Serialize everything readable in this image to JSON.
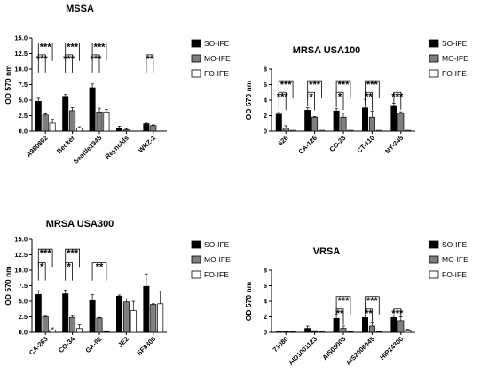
{
  "colors": {
    "SO-IFE": "#000000",
    "MO-IFE": "#7f7f7f",
    "FO-IFE": "#ffffff"
  },
  "chart_data": [
    {
      "type": "bar",
      "title": "MSSA",
      "ylabel": "OD 570 nm",
      "ylim": [
        0,
        15
      ],
      "yticks": [
        "0.0",
        "2.5",
        "5.0",
        "7.5",
        "10.0",
        "12.5",
        "15.0"
      ],
      "categories": [
        "A980892",
        "Becker",
        "Seattle1945",
        "Reynolds",
        "WKZ-1"
      ],
      "legend": [
        "SO-IFE",
        "MO-IFE",
        "FO-IFE"
      ],
      "series": [
        {
          "name": "SO-IFE",
          "values": [
            4.8,
            5.6,
            7.0,
            0.5,
            1.2
          ],
          "errors": [
            0.5,
            0.3,
            0.6,
            0.3,
            0.1
          ]
        },
        {
          "name": "MO-IFE",
          "values": [
            2.6,
            3.3,
            3.1,
            0.2,
            0.9
          ],
          "errors": [
            0.2,
            0.5,
            0.6,
            0.2,
            0.1
          ]
        },
        {
          "name": "FO-IFE",
          "values": [
            1.3,
            0.5,
            3.1,
            null,
            null
          ],
          "errors": [
            0.6,
            0.2,
            0.4,
            null,
            null
          ]
        }
      ],
      "significance": [
        {
          "cat": 0,
          "pair": [
            0,
            1
          ],
          "label": "***",
          "y": 12.3
        },
        {
          "cat": 0,
          "pair": [
            0,
            2
          ],
          "label": "***",
          "y": 14.2
        },
        {
          "cat": 1,
          "pair": [
            0,
            1
          ],
          "label": "***",
          "y": 12.3
        },
        {
          "cat": 1,
          "pair": [
            0,
            2
          ],
          "label": "***",
          "y": 14.2
        },
        {
          "cat": 2,
          "pair": [
            0,
            1
          ],
          "label": "***",
          "y": 12.3
        },
        {
          "cat": 2,
          "pair": [
            0,
            2
          ],
          "label": "***",
          "y": 14.2
        },
        {
          "cat": 4,
          "pair": [
            0,
            1
          ],
          "label": "**",
          "y": 12.3
        }
      ]
    },
    {
      "type": "bar",
      "title": "MRSA USA100",
      "ylabel": "OD 570 nm",
      "ylim": [
        0,
        8
      ],
      "yticks": [
        "0",
        "2",
        "4",
        "6",
        "8"
      ],
      "categories": [
        "626",
        "CA-126",
        "CO-23",
        "CT-110",
        "NY-245"
      ],
      "legend": [
        "SO-IFE",
        "MO-IFE",
        "FO-IFE"
      ],
      "series": [
        {
          "name": "SO-IFE",
          "values": [
            2.2,
            2.7,
            2.6,
            3.0,
            3.2
          ],
          "errors": [
            0.2,
            0.3,
            0.3,
            1.1,
            0.4
          ]
        },
        {
          "name": "MO-IFE",
          "values": [
            0.4,
            1.8,
            1.8,
            1.8,
            2.3
          ],
          "errors": [
            0.3,
            0.1,
            0.5,
            0.8,
            0.2
          ]
        },
        {
          "name": "FO-IFE",
          "values": [
            0.1,
            0.1,
            0.1,
            0.1,
            0.1
          ],
          "errors": [
            null,
            null,
            null,
            null,
            null
          ]
        }
      ],
      "significance": [
        {
          "cat": 0,
          "pair": [
            0,
            1
          ],
          "label": "***",
          "y": 5.0
        },
        {
          "cat": 0,
          "pair": [
            0,
            2
          ],
          "label": "***",
          "y": 6.5
        },
        {
          "cat": 1,
          "pair": [
            0,
            1
          ],
          "label": "*",
          "y": 5.0
        },
        {
          "cat": 1,
          "pair": [
            0,
            2
          ],
          "label": "***",
          "y": 6.5
        },
        {
          "cat": 2,
          "pair": [
            0,
            1
          ],
          "label": "*",
          "y": 5.0
        },
        {
          "cat": 2,
          "pair": [
            0,
            2
          ],
          "label": "***",
          "y": 6.5
        },
        {
          "cat": 3,
          "pair": [
            0,
            1
          ],
          "label": "**",
          "y": 5.0
        },
        {
          "cat": 3,
          "pair": [
            0,
            2
          ],
          "label": "***",
          "y": 6.5
        },
        {
          "cat": 4,
          "pair": [
            0,
            1
          ],
          "label": "***",
          "y": 5.0
        }
      ]
    },
    {
      "type": "bar",
      "title": "MRSA USA300",
      "ylabel": "OD 570 nm",
      "ylim": [
        0,
        15
      ],
      "yticks": [
        "0.0",
        "2.5",
        "5.0",
        "7.5",
        "10.0",
        "12.5",
        "15.0"
      ],
      "categories": [
        "CA-263",
        "CO-34",
        "GA-92",
        "JE2",
        "SF8300"
      ],
      "legend": [
        "SO-IFE",
        "MO-IFE",
        "FO-IFE"
      ],
      "series": [
        {
          "name": "SO-IFE",
          "values": [
            6.1,
            6.2,
            5.1,
            5.8,
            7.4
          ],
          "errors": [
            0.6,
            0.6,
            1.0,
            0.2,
            2.0
          ]
        },
        {
          "name": "MO-IFE",
          "values": [
            2.5,
            2.4,
            2.3,
            4.9,
            4.5
          ],
          "errors": [
            0.1,
            0.3,
            0.1,
            0.5,
            0.1
          ]
        },
        {
          "name": "FO-IFE",
          "values": [
            0.4,
            0.6,
            0.1,
            3.5,
            4.6
          ],
          "errors": [
            0.3,
            0.6,
            null,
            1.5,
            2.0
          ]
        }
      ],
      "significance": [
        {
          "cat": 0,
          "pair": [
            0,
            1
          ],
          "label": "*",
          "y": 11.2
        },
        {
          "cat": 0,
          "pair": [
            0,
            2
          ],
          "label": "***",
          "y": 13.4
        },
        {
          "cat": 1,
          "pair": [
            0,
            1
          ],
          "label": "*",
          "y": 11.2
        },
        {
          "cat": 1,
          "pair": [
            0,
            2
          ],
          "label": "***",
          "y": 13.4
        },
        {
          "cat": 2,
          "pair": [
            0,
            2
          ],
          "label": "**",
          "y": 11.2
        }
      ]
    },
    {
      "type": "bar",
      "title": "VRSA",
      "ylabel": "OD 570 nm",
      "ylim": [
        0,
        8
      ],
      "yticks": [
        "0",
        "2",
        "4",
        "6",
        "8"
      ],
      "categories": [
        "71080",
        "AID1001123",
        "AIS08003",
        "AIS2006045",
        "HIP14300"
      ],
      "legend": [
        "SO-IFE",
        "MO-IFE",
        "FO-IFE"
      ],
      "series": [
        {
          "name": "SO-IFE",
          "values": [
            0.05,
            0.5,
            1.8,
            1.9,
            1.9
          ],
          "errors": [
            null,
            0.3,
            0.5,
            0.3,
            0.3
          ]
        },
        {
          "name": "MO-IFE",
          "values": [
            0.02,
            0.1,
            0.5,
            0.8,
            1.5
          ],
          "errors": [
            null,
            null,
            0.3,
            0.4,
            0.5
          ]
        },
        {
          "name": "FO-IFE",
          "values": [
            0.02,
            0.02,
            0.02,
            0.02,
            0.2
          ],
          "errors": [
            null,
            null,
            null,
            null,
            0.2
          ]
        }
      ],
      "significance": [
        {
          "cat": 2,
          "pair": [
            0,
            1
          ],
          "label": "**",
          "y": 3.0
        },
        {
          "cat": 2,
          "pair": [
            0,
            2
          ],
          "label": "***",
          "y": 4.6
        },
        {
          "cat": 3,
          "pair": [
            0,
            1
          ],
          "label": "**",
          "y": 3.0
        },
        {
          "cat": 3,
          "pair": [
            0,
            2
          ],
          "label": "***",
          "y": 4.6
        },
        {
          "cat": 4,
          "pair": [
            0,
            1
          ],
          "label": "***",
          "y": 3.0
        }
      ]
    }
  ]
}
